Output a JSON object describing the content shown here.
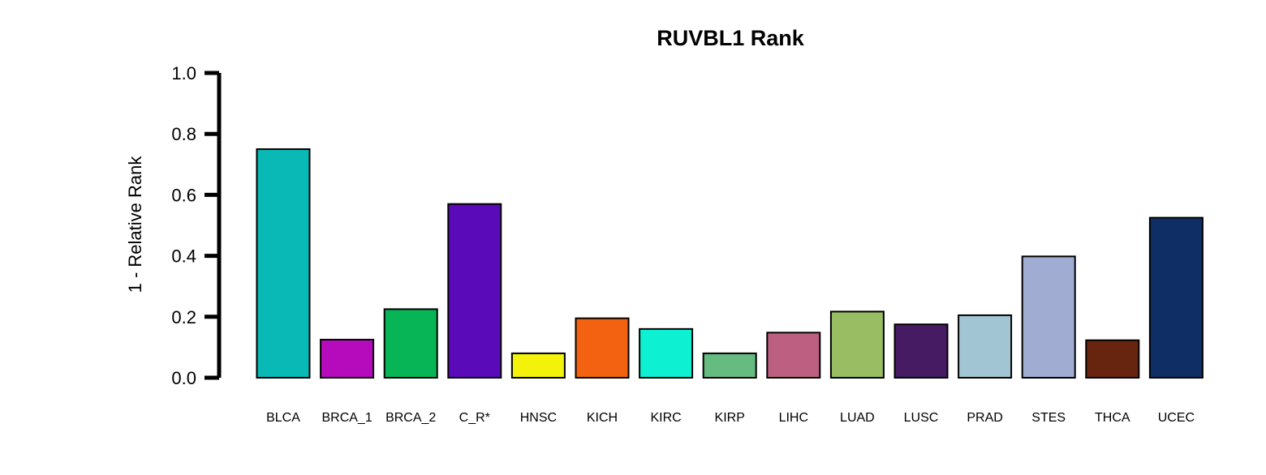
{
  "chart_data": {
    "type": "bar",
    "title": "RUVBL1 Rank",
    "xlabel": "",
    "ylabel": "1 - Relative Rank",
    "ylim": [
      0,
      1.0
    ],
    "yticks": [
      "0.0",
      "0.2",
      "0.4",
      "0.6",
      "0.8",
      "1.0"
    ],
    "grid": false,
    "legend": "none",
    "categories": [
      "BLCA",
      "BRCA_1",
      "BRCA_2",
      "C_R*",
      "HNSC",
      "KICH",
      "KIRC",
      "KIRP",
      "LIHC",
      "LUAD",
      "LUSC",
      "PRAD",
      "STES",
      "THCA",
      "UCEC"
    ],
    "values": [
      0.75,
      0.125,
      0.225,
      0.57,
      0.08,
      0.195,
      0.16,
      0.08,
      0.148,
      0.217,
      0.175,
      0.205,
      0.398,
      0.123,
      0.525
    ],
    "colors": [
      "#09b9b5",
      "#b60bbc",
      "#08b556",
      "#5b0ab9",
      "#f2f20a",
      "#f26210",
      "#0ef0d2",
      "#66bb80",
      "#bd5f80",
      "#98bd62",
      "#461b63",
      "#a1c5d3",
      "#a0acd2",
      "#672510",
      "#0e2e65"
    ]
  }
}
